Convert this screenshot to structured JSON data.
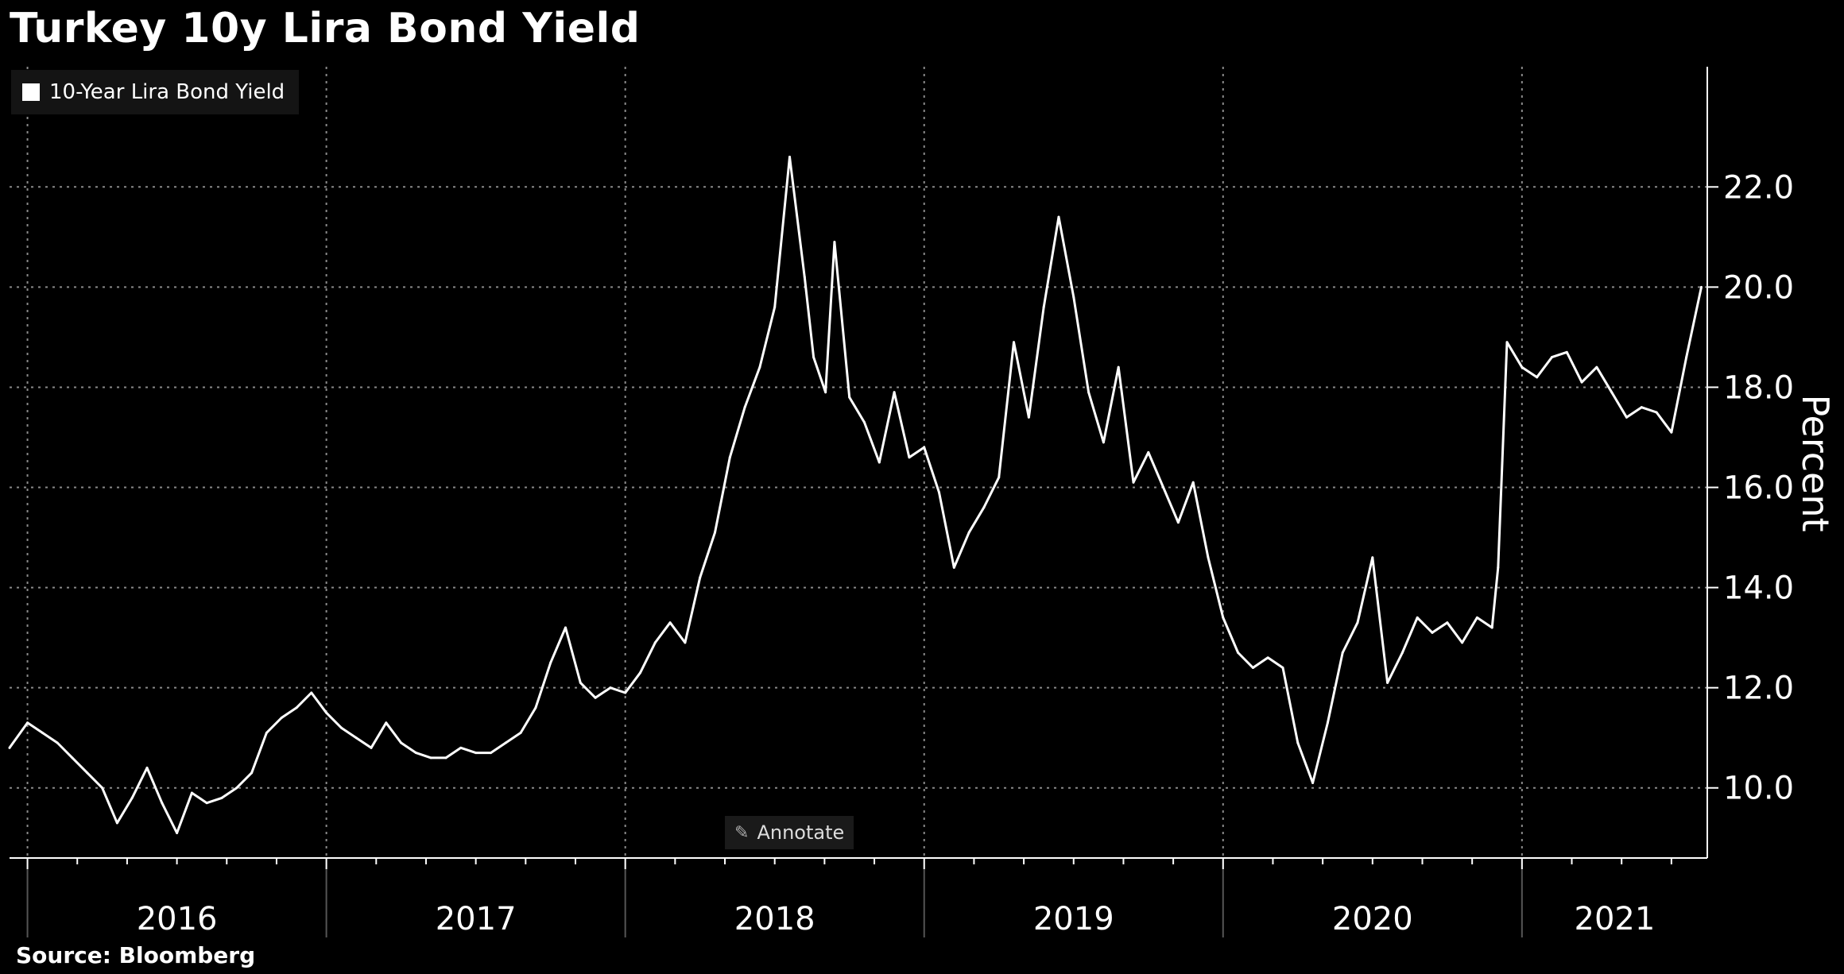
{
  "title": "Turkey 10y Lira Bond Yield",
  "source": "Source: Bloomberg",
  "annotate_label": "Annotate",
  "annotate_icon": "pencil-icon",
  "colors": {
    "background": "#000000",
    "line": "#ffffff",
    "grid": "#8a8a8a"
  },
  "chart_data": {
    "type": "line",
    "title": "Turkey 10y Lira Bond Yield",
    "ylabel": "Percent",
    "xlabel": "",
    "ylim": [
      8.6,
      24.4
    ],
    "xlim": [
      2015.94,
      2021.62
    ],
    "y_ticks": [
      "10.0",
      "12.0",
      "14.0",
      "16.0",
      "18.0",
      "20.0",
      "22.0"
    ],
    "x_tick_labels": [
      "2016",
      "2017",
      "2018",
      "2019",
      "2020",
      "2021"
    ],
    "grid": true,
    "legend": "top-left",
    "series": [
      {
        "name": "10-Year Lira Bond Yield",
        "x": [
          2015.94,
          2016.0,
          2016.05,
          2016.1,
          2016.15,
          2016.2,
          2016.25,
          2016.3,
          2016.35,
          2016.4,
          2016.45,
          2016.5,
          2016.55,
          2016.6,
          2016.65,
          2016.7,
          2016.75,
          2016.8,
          2016.85,
          2016.9,
          2016.95,
          2017.0,
          2017.05,
          2017.1,
          2017.15,
          2017.2,
          2017.25,
          2017.3,
          2017.35,
          2017.4,
          2017.45,
          2017.5,
          2017.55,
          2017.6,
          2017.65,
          2017.7,
          2017.75,
          2017.8,
          2017.85,
          2017.9,
          2017.95,
          2018.0,
          2018.05,
          2018.1,
          2018.15,
          2018.2,
          2018.25,
          2018.3,
          2018.35,
          2018.4,
          2018.45,
          2018.5,
          2018.55,
          2018.6,
          2018.63,
          2018.67,
          2018.7,
          2018.75,
          2018.8,
          2018.85,
          2018.9,
          2018.95,
          2019.0,
          2019.05,
          2019.1,
          2019.15,
          2019.2,
          2019.25,
          2019.3,
          2019.35,
          2019.4,
          2019.45,
          2019.5,
          2019.55,
          2019.6,
          2019.65,
          2019.7,
          2019.75,
          2019.8,
          2019.85,
          2019.9,
          2019.95,
          2020.0,
          2020.05,
          2020.1,
          2020.15,
          2020.2,
          2020.25,
          2020.3,
          2020.35,
          2020.4,
          2020.45,
          2020.5,
          2020.55,
          2020.6,
          2020.65,
          2020.7,
          2020.75,
          2020.8,
          2020.85,
          2020.9,
          2020.92,
          2020.95,
          2021.0,
          2021.05,
          2021.1,
          2021.15,
          2021.2,
          2021.25,
          2021.3,
          2021.35,
          2021.4,
          2021.45,
          2021.5,
          2021.55,
          2021.6
        ],
        "values": [
          10.8,
          11.3,
          11.1,
          10.9,
          10.6,
          10.3,
          10.0,
          9.3,
          9.8,
          10.4,
          9.7,
          9.1,
          9.9,
          9.7,
          9.8,
          10.0,
          10.3,
          11.1,
          11.4,
          11.6,
          11.9,
          11.5,
          11.2,
          11.0,
          10.8,
          11.3,
          10.9,
          10.7,
          10.6,
          10.6,
          10.8,
          10.7,
          10.7,
          10.9,
          11.1,
          11.6,
          12.5,
          13.2,
          12.1,
          11.8,
          12.0,
          11.9,
          12.3,
          12.9,
          13.3,
          12.9,
          14.2,
          15.1,
          16.6,
          17.6,
          18.4,
          19.6,
          22.6,
          20.2,
          18.6,
          17.9,
          20.9,
          17.8,
          17.3,
          16.5,
          17.9,
          16.6,
          16.8,
          15.9,
          14.4,
          15.1,
          15.6,
          16.2,
          18.9,
          17.4,
          19.6,
          21.4,
          19.8,
          17.9,
          16.9,
          18.4,
          16.1,
          16.7,
          16.0,
          15.3,
          16.1,
          14.6,
          13.4,
          12.7,
          12.4,
          12.6,
          12.4,
          10.9,
          10.1,
          11.3,
          12.7,
          13.3,
          14.6,
          12.1,
          12.7,
          13.4,
          13.1,
          13.3,
          12.9,
          13.4,
          13.2,
          14.4,
          18.9,
          18.4,
          18.2,
          18.6,
          18.7,
          18.1,
          18.4,
          17.9,
          17.4,
          17.6,
          17.5,
          17.1,
          18.6,
          20.0
        ]
      }
    ]
  }
}
